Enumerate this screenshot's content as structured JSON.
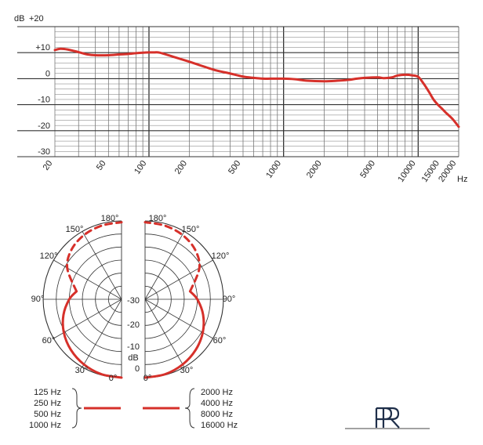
{
  "chart_data": [
    {
      "type": "line",
      "title": "",
      "xlabel": "Hz",
      "ylabel": "dB",
      "x_scale": "log",
      "xlim": [
        20,
        20000
      ],
      "ylim": [
        -30,
        20
      ],
      "x_ticks": [
        20,
        50,
        100,
        200,
        500,
        1000,
        2000,
        5000,
        10000,
        15000,
        20000
      ],
      "x_tick_labels": [
        "20",
        "50",
        "100",
        "200",
        "500",
        "1000",
        "2000",
        "5000",
        "10000",
        "15000",
        "20000"
      ],
      "y_ticks": [
        20,
        10,
        0,
        -10,
        -20,
        -30
      ],
      "y_tick_labels": [
        "+20",
        "+10",
        "0",
        "-10",
        "-20",
        "-30"
      ],
      "grid": true,
      "series": [
        {
          "color": "#d6302a",
          "x": [
            20,
            22,
            25,
            30,
            35,
            40,
            50,
            60,
            70,
            80,
            90,
            100,
            110,
            120,
            150,
            200,
            300,
            400,
            500,
            600,
            700,
            800,
            1000,
            1200,
            1500,
            2000,
            2500,
            3000,
            3500,
            4000,
            5000,
            5500,
            6000,
            6500,
            7000,
            8000,
            9000,
            10000,
            11000,
            12000,
            13000,
            14000,
            15000,
            16000,
            18000,
            20000
          ],
          "y": [
            11,
            11.5,
            11.2,
            10.2,
            9.3,
            9.0,
            9.0,
            9.3,
            9.5,
            9.8,
            10.0,
            10.1,
            10.1,
            10.0,
            8.5,
            6.5,
            3.5,
            2.0,
            0.8,
            0.3,
            0,
            0,
            0,
            -0.2,
            -0.8,
            -1.0,
            -0.8,
            -0.5,
            0,
            0.3,
            0.5,
            0.2,
            0.3,
            0.6,
            1.2,
            1.5,
            1.3,
            0.7,
            -2.0,
            -5.0,
            -8.0,
            -10.0,
            -11.5,
            -13.0,
            -15.5,
            -18.5
          ]
        }
      ]
    },
    {
      "type": "polar",
      "title": "",
      "angle_labels_left": [
        "180°",
        "150°",
        "120°",
        "90°",
        "60°",
        "30°",
        "0°"
      ],
      "angle_labels_right": [
        "180°",
        "150°",
        "120°",
        "90°",
        "60°",
        "30°",
        "0°"
      ],
      "radial_labels": [
        "-30",
        "-20",
        "-10",
        "dB",
        "0"
      ],
      "radial_unit": "dB",
      "rlim": [
        -30,
        0
      ],
      "pattern": "cardioid",
      "series": [
        {
          "angles_deg": [
            0,
            15,
            30,
            45,
            60,
            75,
            90,
            100
          ],
          "level_db": [
            0,
            -0.3,
            -1.2,
            -2.6,
            -4.5,
            -7.0,
            -10.0,
            -12.5
          ],
          "style": "solid",
          "color": "#d6302a"
        },
        {
          "angles_deg": [
            100,
            120,
            135,
            150,
            165,
            180
          ],
          "level_db": [
            -12.5,
            -6.0,
            -3.0,
            -1.5,
            -0.8,
            -0.5
          ],
          "style": "dashed",
          "color": "#d6302a"
        }
      ]
    }
  ],
  "legend": {
    "left_group": [
      "125 Hz",
      "250 Hz",
      "500 Hz",
      "1000 Hz"
    ],
    "right_group": [
      "2000 Hz",
      "4000 Hz",
      "8000 Hz",
      "16000 Hz"
    ],
    "line_color": "#d6302a"
  },
  "logo": {
    "text": "PR"
  }
}
